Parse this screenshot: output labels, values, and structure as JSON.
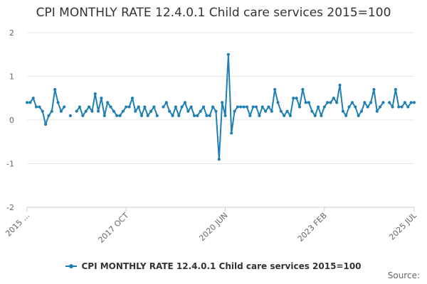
{
  "title": "CPI MONTHLY RATE 12.4.0.1 Child care services 2015=100",
  "source_label": "Source:",
  "chart_data": {
    "type": "line",
    "title": "CPI MONTHLY RATE 12.4.0.1 Child care services 2015=100",
    "xlabel": "",
    "ylabel": "",
    "ylim": [
      -2,
      2
    ],
    "y_ticks": [
      -2,
      -1,
      0,
      1,
      2
    ],
    "x_tick_labels": [
      "2015 ...",
      "2017 OCT",
      "2020 JUN",
      "2023 FEB",
      "2025 JUL"
    ],
    "x_tick_index": [
      0,
      32,
      64,
      96,
      125
    ],
    "grid": "horizontal",
    "legend_position": "bottom",
    "series_color": "#1f7fb4",
    "series": [
      {
        "name": "CPI MONTHLY RATE 12.4.0.1 Child care services 2015=100",
        "values": [
          0.4,
          0.4,
          0.5,
          0.3,
          0.3,
          0.2,
          -0.1,
          0.1,
          0.2,
          0.7,
          0.4,
          0.2,
          0.3,
          null,
          0.1,
          null,
          0.2,
          0.3,
          0.1,
          0.2,
          0.3,
          0.2,
          0.6,
          0.2,
          0.5,
          0.1,
          0.4,
          0.3,
          0.2,
          0.1,
          0.1,
          0.2,
          0.3,
          0.3,
          0.5,
          0.2,
          0.3,
          0.1,
          0.3,
          0.1,
          0.2,
          0.3,
          0.1,
          null,
          0.3,
          0.4,
          0.2,
          0.1,
          0.3,
          0.1,
          0.3,
          0.4,
          0.2,
          0.3,
          0.1,
          0.1,
          0.2,
          0.3,
          0.1,
          0.1,
          0.3,
          0.2,
          -0.9,
          0.4,
          0.1,
          1.5,
          -0.3,
          0.2,
          0.3,
          0.3,
          0.3,
          0.3,
          0.1,
          0.3,
          0.3,
          0.1,
          0.3,
          0.2,
          0.3,
          0.2,
          0.7,
          0.4,
          0.2,
          0.1,
          0.2,
          0.1,
          0.5,
          0.5,
          0.3,
          0.7,
          0.4,
          0.4,
          0.2,
          0.1,
          0.3,
          0.1,
          0.3,
          0.4,
          0.4,
          0.5,
          0.4,
          0.8,
          0.2,
          0.1,
          0.3,
          0.4,
          0.3,
          0.1,
          0.2,
          0.4,
          0.3,
          0.4,
          0.7,
          0.2,
          0.3,
          0.4,
          null,
          0.4,
          0.3,
          0.7,
          0.3,
          0.3,
          0.4,
          0.3,
          0.4,
          0.4
        ]
      }
    ]
  },
  "legend": {
    "label": "CPI MONTHLY RATE 12.4.0.1 Child care services 2015=100"
  }
}
